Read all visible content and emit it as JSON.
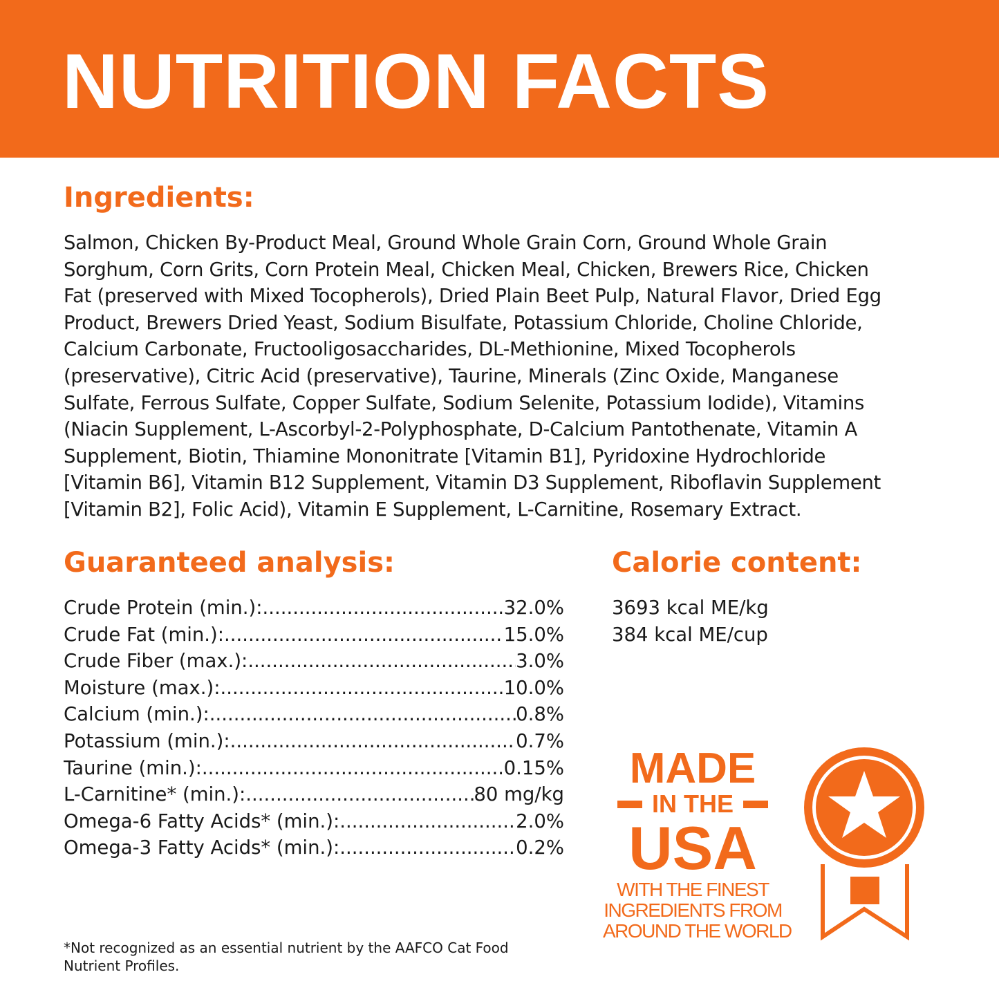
{
  "header": {
    "title": "NUTRITION FACTS",
    "color": "#f26a1b"
  },
  "ingredients": {
    "heading": "Ingredients:",
    "lines": [
      "Salmon, Chicken By-Product Meal, Ground Whole Grain Corn, Ground Whole Grain",
      "Sorghum, Corn Grits, Corn Protein Meal, Chicken Meal, Chicken, Brewers Rice, Chicken",
      "Fat (preserved with Mixed Tocopherols), Dried Plain Beet Pulp, Natural Flavor, Dried Egg",
      "Product, Brewers Dried Yeast, Sodium Bisulfate, Potassium Chloride, Choline Chloride,",
      "Calcium Carbonate, Fructooligosaccharides, DL-Methionine, Mixed Tocopherols",
      "(preservative), Citric Acid (preservative), Taurine, Minerals (Zinc Oxide, Manganese",
      "Sulfate, Ferrous Sulfate, Copper Sulfate, Sodium Selenite, Potassium Iodide), Vitamins",
      "(Niacin Supplement, L-Ascorbyl-2-Polyphosphate, D-Calcium Pantothenate, Vitamin A",
      "Supplement, Biotin, Thiamine Mononitrate [Vitamin B1], Pyridoxine Hydrochloride",
      "[Vitamin B6], Vitamin B12 Supplement, Vitamin D3 Supplement, Riboflavin Supplement",
      "[Vitamin B2], Folic Acid), Vitamin E Supplement, L-Carnitine, Rosemary Extract."
    ]
  },
  "analysis": {
    "heading": "Guaranteed analysis:",
    "rows": [
      {
        "label": "Crude Protein (min.):",
        "value": "32.0%"
      },
      {
        "label": "Crude Fat (min.):",
        "value": "15.0%"
      },
      {
        "label": "Crude Fiber (max.):",
        "value": "3.0%"
      },
      {
        "label": "Moisture (max.):",
        "value": "10.0%"
      },
      {
        "label": "Calcium (min.):",
        "value": "0.8%"
      },
      {
        "label": "Potassium (min.):",
        "value": "0.7%"
      },
      {
        "label": "Taurine (min.):",
        "value": "0.15%"
      },
      {
        "label": "L-Carnitine* (min.):",
        "value": "80 mg/kg"
      },
      {
        "label": "Omega-6 Fatty Acids* (min.):",
        "value": "2.0%"
      },
      {
        "label": "Omega-3 Fatty Acids* (min.):",
        "value": "0.2%"
      }
    ]
  },
  "calorie": {
    "heading": "Calorie content:",
    "lines": [
      "3693 kcal ME/kg",
      "384 kcal ME/cup"
    ]
  },
  "badge": {
    "line1": "MADE",
    "line2": "IN THE",
    "line3": "USA",
    "line4": "WITH THE FINEST",
    "line5": "INGREDIENTS FROM",
    "line6": "AROUND THE WORLD",
    "icon": "award-ribbon-star-icon"
  },
  "footnote": {
    "lines": [
      "*Not recognized as an essential nutrient by the AAFCO Cat Food",
      "Nutrient Profiles."
    ]
  }
}
